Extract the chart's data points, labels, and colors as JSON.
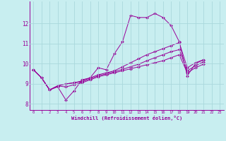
{
  "xlabel": "Windchill (Refroidissement éolien,°C)",
  "background_color": "#c8eef0",
  "line_color": "#990099",
  "grid_color": "#b0dde0",
  "xlim": [
    -0.5,
    23.5
  ],
  "ylim": [
    7.7,
    13.1
  ],
  "xticks": [
    0,
    1,
    2,
    3,
    4,
    5,
    6,
    7,
    8,
    9,
    10,
    11,
    12,
    13,
    14,
    15,
    16,
    17,
    18,
    19,
    20,
    21,
    22,
    23
  ],
  "yticks": [
    8,
    9,
    10,
    11,
    12
  ],
  "series": [
    {
      "x": [
        0,
        1,
        2,
        3,
        4,
        5,
        6,
        7,
        8,
        9,
        10,
        11,
        12,
        13,
        14,
        15,
        16,
        17,
        18,
        19,
        20,
        21
      ],
      "y": [
        9.7,
        9.3,
        8.7,
        8.85,
        8.2,
        8.65,
        9.2,
        9.3,
        9.8,
        9.7,
        10.5,
        11.1,
        12.4,
        12.3,
        12.3,
        12.5,
        12.3,
        11.9,
        11.1,
        9.4,
        10.0,
        10.2
      ]
    },
    {
      "x": [
        0,
        1,
        2,
        3,
        4,
        5,
        6,
        7,
        8,
        9,
        10,
        11,
        12,
        13,
        14,
        15,
        16,
        17,
        18,
        19,
        20,
        21
      ],
      "y": [
        9.7,
        9.3,
        8.7,
        8.9,
        9.0,
        9.05,
        9.15,
        9.3,
        9.45,
        9.55,
        9.65,
        9.85,
        10.05,
        10.25,
        10.45,
        10.6,
        10.75,
        10.9,
        11.05,
        9.8,
        10.05,
        10.2
      ]
    },
    {
      "x": [
        0,
        1,
        2,
        3,
        4,
        5,
        6,
        7,
        8,
        9,
        10,
        11,
        12,
        13,
        14,
        15,
        16,
        17,
        18,
        19,
        20,
        21
      ],
      "y": [
        9.7,
        9.3,
        8.7,
        8.9,
        9.0,
        9.05,
        9.1,
        9.25,
        9.4,
        9.5,
        9.6,
        9.72,
        9.85,
        9.98,
        10.15,
        10.3,
        10.45,
        10.6,
        10.7,
        9.65,
        9.9,
        10.1
      ]
    },
    {
      "x": [
        0,
        1,
        2,
        3,
        4,
        5,
        6,
        7,
        8,
        9,
        10,
        11,
        12,
        13,
        14,
        15,
        16,
        17,
        18,
        19,
        20,
        21
      ],
      "y": [
        9.7,
        9.3,
        8.7,
        8.9,
        8.85,
        8.95,
        9.05,
        9.2,
        9.35,
        9.45,
        9.55,
        9.65,
        9.75,
        9.85,
        9.95,
        10.05,
        10.15,
        10.3,
        10.45,
        9.55,
        9.8,
        9.98
      ]
    }
  ]
}
